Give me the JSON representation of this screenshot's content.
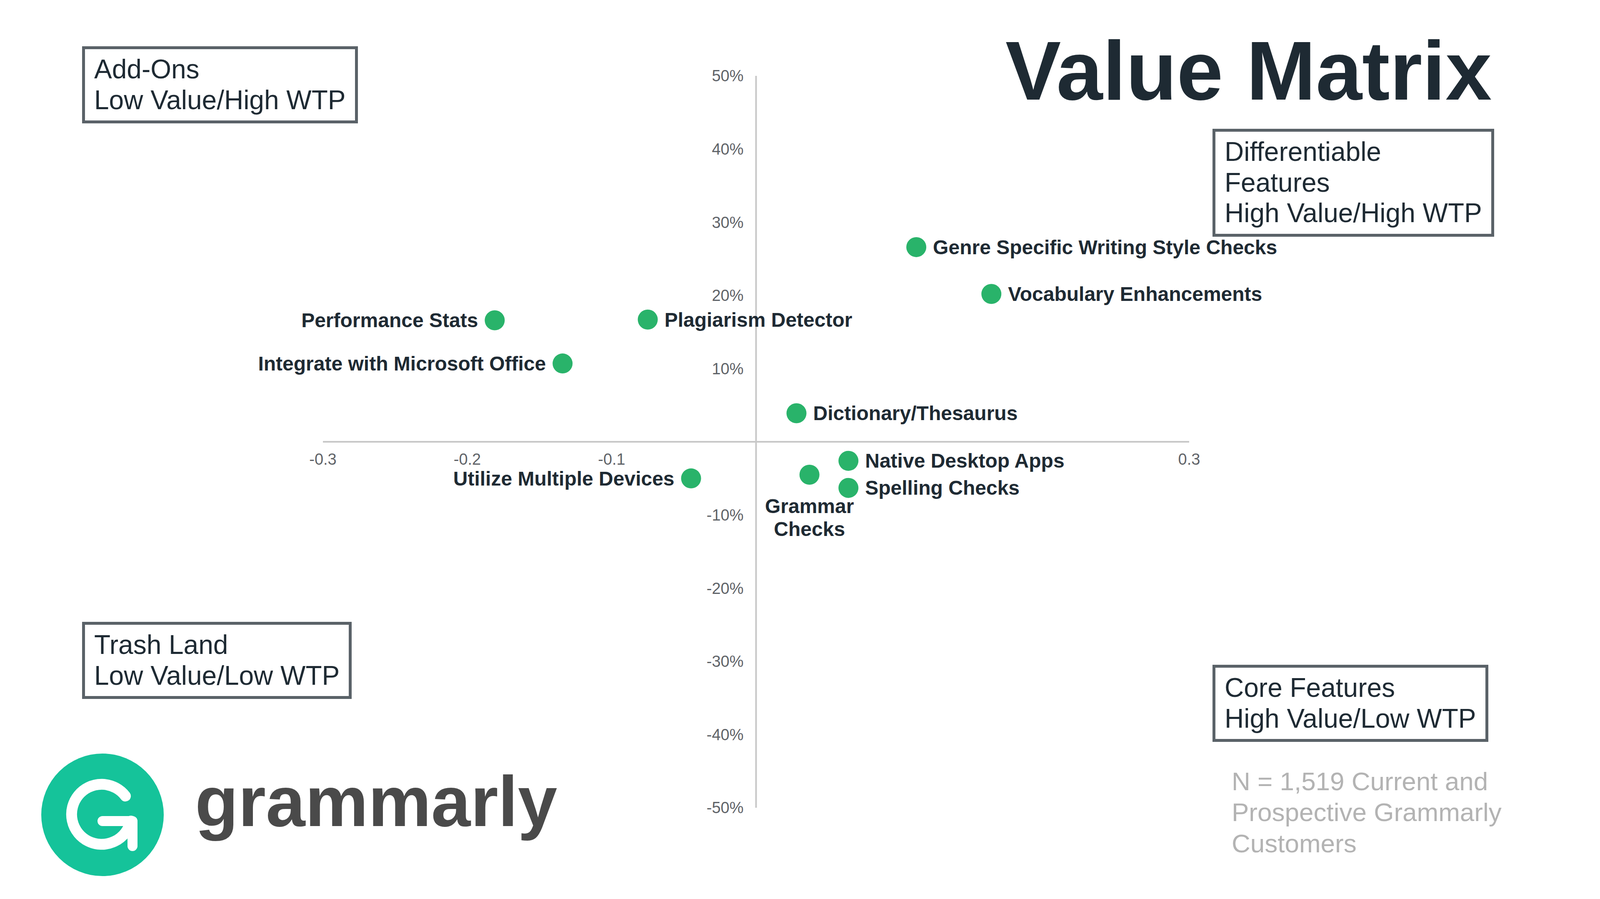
{
  "chart_data": {
    "type": "scatter",
    "title": "Value Matrix",
    "labels": [
      "Genre Specific Writing Style Checks",
      "Vocabulary Enhancements",
      "Performance Stats",
      "Plagiarism Detector",
      "Integrate with Microsoft Office",
      "Dictionary/Thesaurus",
      "Native Desktop Apps",
      "Spelling Checks",
      "Grammar Checks",
      "Utilize Multiple Devices"
    ],
    "x": [
      0.111,
      0.163,
      -0.181,
      -0.075,
      -0.134,
      0.028,
      0.064,
      0.064,
      0.037,
      -0.045
    ],
    "values": [
      26.6,
      20.2,
      16.6,
      16.7,
      10.7,
      3.9,
      -2.6,
      -6.3,
      -4.5,
      -5.0
    ],
    "color": "#29b36a",
    "marker": "circle",
    "xlim": [
      -0.3,
      0.3
    ],
    "xticks": [
      -0.3,
      -0.2,
      -0.1,
      0.3
    ],
    "ylim": [
      -50,
      50
    ],
    "yticks": [
      {
        "value": 50,
        "label": "50%"
      },
      {
        "value": 40,
        "label": "40%"
      },
      {
        "value": 30,
        "label": "30%"
      },
      {
        "value": 20,
        "label": "20%"
      },
      {
        "value": 10,
        "label": "10%"
      },
      {
        "value": -10,
        "label": "-10%"
      },
      {
        "value": -20,
        "label": "-20%"
      },
      {
        "value": -30,
        "label": "-30%"
      },
      {
        "value": -40,
        "label": "-40%"
      },
      {
        "value": -50,
        "label": "-50%"
      }
    ],
    "quadrants": [
      {
        "name": "Add-Ons",
        "description": "Low Value/High WTP"
      },
      {
        "name": "Differentiable Features",
        "description": "High Value/High WTP"
      },
      {
        "name": "Trash Land",
        "description": "Low Value/Low WTP"
      },
      {
        "name": "Core Features",
        "description": "High Value/Low WTP"
      }
    ],
    "note": "N = 1,519 Current and Prospective Grammarly Customers",
    "logo": "grammarly"
  }
}
